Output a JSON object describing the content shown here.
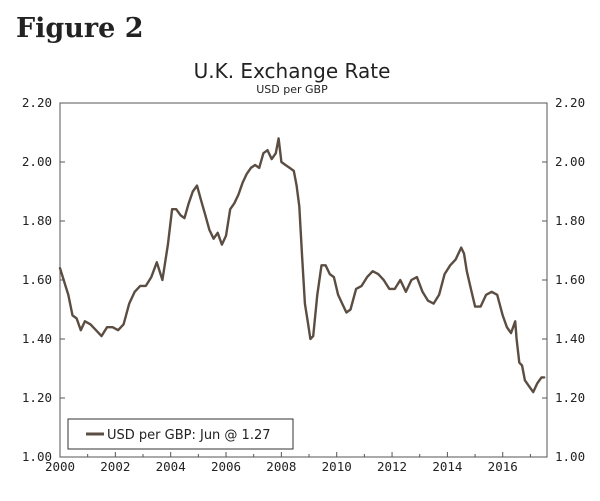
{
  "figure_label": "Figure 2",
  "chart_data": {
    "type": "line",
    "title": "U.K. Exchange Rate",
    "subtitle": "USD per GBP",
    "xlabel": "",
    "ylabel": "",
    "xlim": [
      2000,
      2017.6
    ],
    "ylim": [
      1.0,
      2.2
    ],
    "y_ticks": [
      "2.20",
      "2.00",
      "1.80",
      "1.60",
      "1.40",
      "1.20",
      "1.00"
    ],
    "y_tick_values": [
      2.2,
      2.0,
      1.8,
      1.6,
      1.4,
      1.2,
      1.0
    ],
    "x_ticks": [
      "2000",
      "2002",
      "2004",
      "2006",
      "2008",
      "2010",
      "2012",
      "2014",
      "2016"
    ],
    "x_tick_values": [
      2000,
      2002,
      2004,
      2006,
      2008,
      2010,
      2012,
      2014,
      2016
    ],
    "legend": {
      "label": "USD per GBP: Jun @ 1.27",
      "position": "bottom-left"
    },
    "series_color": "#5b4d42",
    "series": [
      {
        "name": "USD per GBP",
        "x": [
          2000.0,
          2000.1,
          2000.2,
          2000.3,
          2000.45,
          2000.6,
          2000.75,
          2000.9,
          2001.1,
          2001.3,
          2001.5,
          2001.7,
          2001.9,
          2002.1,
          2002.3,
          2002.5,
          2002.7,
          2002.9,
          2003.1,
          2003.3,
          2003.5,
          2003.7,
          2003.9,
          2004.05,
          2004.2,
          2004.35,
          2004.5,
          2004.65,
          2004.8,
          2004.95,
          2005.1,
          2005.25,
          2005.4,
          2005.55,
          2005.7,
          2005.85,
          2006.0,
          2006.15,
          2006.3,
          2006.45,
          2006.6,
          2006.75,
          2006.9,
          2007.05,
          2007.2,
          2007.35,
          2007.5,
          2007.65,
          2007.8,
          2007.9,
          2008.0,
          2008.15,
          2008.3,
          2008.45,
          2008.55,
          2008.65,
          2008.75,
          2008.85,
          2008.95,
          2009.05,
          2009.15,
          2009.3,
          2009.45,
          2009.6,
          2009.75,
          2009.9,
          2010.05,
          2010.2,
          2010.35,
          2010.5,
          2010.7,
          2010.9,
          2011.1,
          2011.3,
          2011.5,
          2011.7,
          2011.9,
          2012.1,
          2012.3,
          2012.5,
          2012.7,
          2012.9,
          2013.1,
          2013.3,
          2013.5,
          2013.7,
          2013.9,
          2014.1,
          2014.3,
          2014.5,
          2014.6,
          2014.7,
          2014.85,
          2015.0,
          2015.2,
          2015.4,
          2015.6,
          2015.8,
          2016.0,
          2016.15,
          2016.3,
          2016.45,
          2016.5,
          2016.6,
          2016.7,
          2016.8,
          2016.95,
          2017.1,
          2017.25,
          2017.4,
          2017.5
        ],
        "values": [
          1.64,
          1.61,
          1.58,
          1.55,
          1.48,
          1.47,
          1.43,
          1.46,
          1.45,
          1.43,
          1.41,
          1.44,
          1.44,
          1.43,
          1.45,
          1.52,
          1.56,
          1.58,
          1.58,
          1.61,
          1.66,
          1.6,
          1.72,
          1.84,
          1.84,
          1.82,
          1.81,
          1.86,
          1.9,
          1.92,
          1.87,
          1.82,
          1.77,
          1.74,
          1.76,
          1.72,
          1.75,
          1.84,
          1.86,
          1.89,
          1.93,
          1.96,
          1.98,
          1.99,
          1.98,
          2.03,
          2.04,
          2.01,
          2.03,
          2.08,
          2.0,
          1.99,
          1.98,
          1.97,
          1.92,
          1.85,
          1.68,
          1.52,
          1.46,
          1.4,
          1.41,
          1.55,
          1.65,
          1.65,
          1.62,
          1.61,
          1.55,
          1.52,
          1.49,
          1.5,
          1.57,
          1.58,
          1.61,
          1.63,
          1.62,
          1.6,
          1.57,
          1.57,
          1.6,
          1.56,
          1.6,
          1.61,
          1.56,
          1.53,
          1.52,
          1.55,
          1.62,
          1.65,
          1.67,
          1.71,
          1.69,
          1.63,
          1.57,
          1.51,
          1.51,
          1.55,
          1.56,
          1.55,
          1.48,
          1.44,
          1.42,
          1.46,
          1.4,
          1.32,
          1.31,
          1.26,
          1.24,
          1.22,
          1.25,
          1.27,
          1.27
        ]
      }
    ]
  }
}
